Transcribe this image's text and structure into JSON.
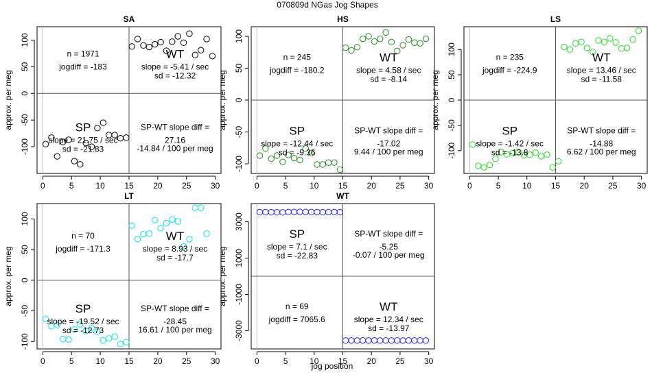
{
  "figure": {
    "title": "070809d   NGas Jog Shapes",
    "xlabel": "jog position",
    "ylabel": "approx. per meg"
  },
  "chart_data": [
    {
      "type": "scatter",
      "id": "SA",
      "title": "SA",
      "xlim": [
        -1,
        31
      ],
      "ylim": [
        -150,
        125
      ],
      "xticks": [
        0,
        5,
        10,
        15,
        20,
        25,
        30
      ],
      "yticks": [
        -100,
        -50,
        0,
        50,
        100
      ],
      "color": "#000000",
      "x": [
        0.5,
        1.5,
        2.5,
        3.5,
        4.5,
        5.5,
        6.5,
        7.5,
        8.5,
        9.5,
        10.5,
        11.5,
        12.5,
        13.5,
        14.5,
        15.5,
        16.5,
        17.5,
        18.5,
        19.5,
        20.5,
        21.5,
        22.5,
        23.5,
        24.5,
        25.5,
        26.5,
        27.5,
        28.5,
        29.5
      ],
      "y": [
        -95,
        -83,
        -118,
        -91,
        -87,
        -127,
        -133,
        -93,
        -100,
        -65,
        -55,
        -78,
        -78,
        -84,
        -83,
        88,
        102,
        90,
        87,
        92,
        96,
        80,
        97,
        107,
        95,
        112,
        72,
        81,
        102,
        70
      ],
      "quadrants": {
        "tl": {
          "n": "n = 1971",
          "jogdiff": "jogdiff = -183"
        },
        "tr": {
          "label": "WT",
          "slope": "slope = -5.41 / sec",
          "sd": "sd = -12.32"
        },
        "bl": {
          "label": "SP",
          "slope": "slope = 21.75 / sec",
          "sd": "sd = -21.83"
        },
        "br": {
          "title": "SP-WT slope diff =",
          "value": "27.16",
          "per": "-14.84 / 100 per meg"
        }
      }
    },
    {
      "type": "scatter",
      "id": "HS",
      "title": "HS",
      "xlim": [
        -1,
        31
      ],
      "ylim": [
        -115,
        115
      ],
      "xticks": [
        0,
        5,
        10,
        15,
        20,
        25,
        30
      ],
      "yticks": [
        -100,
        -50,
        0,
        50,
        100
      ],
      "color": "#228b22",
      "x": [
        0.5,
        1.5,
        2.5,
        3.5,
        4.5,
        5.5,
        6.5,
        7.5,
        8.5,
        9.5,
        10.5,
        11.5,
        12.5,
        13.5,
        14.5,
        15.5,
        16.5,
        17.5,
        18.5,
        19.5,
        20.5,
        21.5,
        22.5,
        23.5,
        24.5,
        25.5,
        26.5,
        27.5,
        28.5,
        29.5
      ],
      "y": [
        -87,
        -76,
        -92,
        -87,
        -97,
        -86,
        -91,
        -94,
        -76,
        -83,
        -101,
        -101,
        -98,
        -98,
        -109,
        82,
        78,
        83,
        96,
        100,
        92,
        96,
        106,
        91,
        77,
        86,
        95,
        90,
        89,
        96
      ],
      "quadrants": {
        "tl": {
          "n": "n = 245",
          "jogdiff": "jogdiff = -180.2"
        },
        "tr": {
          "label": "WT",
          "slope": "slope = 4.58 / sec",
          "sd": "sd = -8.14"
        },
        "bl": {
          "label": "SP",
          "slope": "slope = -12.44 / sec",
          "sd": "sd = -9.36"
        },
        "br": {
          "title": "SP-WT slope diff =",
          "value": "-17.02",
          "per": "9.44 / 100 per meg"
        }
      }
    },
    {
      "type": "scatter",
      "id": "LS",
      "title": "LS",
      "xlim": [
        -1,
        31
      ],
      "ylim": [
        -145,
        145
      ],
      "xticks": [
        0,
        5,
        10,
        15,
        20,
        25,
        30
      ],
      "yticks": [
        -100,
        -50,
        0,
        50,
        100
      ],
      "color": "#22dd22",
      "x": [
        0.5,
        1.5,
        2.5,
        3.5,
        4.5,
        5.5,
        6.5,
        7.5,
        8.5,
        9.5,
        10.5,
        11.5,
        12.5,
        13.5,
        14.5,
        15.5,
        16.5,
        17.5,
        18.5,
        19.5,
        20.5,
        21.5,
        22.5,
        23.5,
        24.5,
        25.5,
        26.5,
        27.5,
        28.5,
        29.5
      ],
      "y": [
        -88,
        -130,
        -133,
        -128,
        -116,
        -103,
        -107,
        -105,
        -103,
        -109,
        -108,
        -104,
        -111,
        -108,
        -133,
        -121,
        105,
        100,
        112,
        115,
        103,
        95,
        118,
        115,
        122,
        114,
        102,
        103,
        120,
        137
      ],
      "quadrants": {
        "tl": {
          "n": "n = 235",
          "jogdiff": "jogdiff = -224.9"
        },
        "tr": {
          "label": "WT",
          "slope": "slope = 13.46 / sec",
          "sd": "sd = -11.58"
        },
        "bl": {
          "label": "SP",
          "slope": "slope = -1.42 / sec",
          "sd": "sd = -13.8"
        },
        "br": {
          "title": "SP-WT slope diff =",
          "value": "-14.88",
          "per": "6.62 / 100 per meg"
        }
      }
    },
    {
      "type": "scatter",
      "id": "LT",
      "title": "LT",
      "xlim": [
        -1,
        31
      ],
      "ylim": [
        -112,
        125
      ],
      "xticks": [
        0,
        5,
        10,
        15,
        20,
        25,
        30
      ],
      "yticks": [
        -100,
        -50,
        0,
        50,
        100
      ],
      "color": "#00e5ee",
      "x": [
        0.5,
        1.5,
        2.5,
        3.5,
        4.5,
        5.5,
        6.5,
        7.5,
        8.5,
        9.5,
        10.5,
        11.5,
        12.5,
        13.5,
        14.5,
        15.5,
        16.5,
        17.5,
        18.5,
        19.5,
        20.5,
        21.5,
        22.5,
        23.5,
        24.5,
        25.5,
        26.5,
        27.5,
        28.5,
        29.5
      ],
      "y": [
        -63,
        -75,
        -73,
        -96,
        -97,
        -80,
        -72,
        -83,
        -78,
        -84,
        -98,
        -95,
        -92,
        -104,
        -101,
        89,
        67,
        75,
        76,
        98,
        85,
        93,
        99,
        96,
        55,
        67,
        118,
        118,
        76,
        null
      ],
      "quadrants": {
        "tl": {
          "n": "n = 70",
          "jogdiff": "jogdiff = -171.3"
        },
        "tr": {
          "label": "WT",
          "slope": "slope = 8.93 / sec",
          "sd": "sd = -17.7"
        },
        "bl": {
          "label": "SP",
          "slope": "slope = -19.52 / sec",
          "sd": "sd = -12.73"
        },
        "br": {
          "title": "SP-WT slope diff =",
          "value": "-28.45",
          "per": "16.61 / 100 per meg"
        }
      }
    },
    {
      "type": "scatter",
      "id": "WT",
      "title": "WT",
      "xlim": [
        -1,
        31
      ],
      "ylim": [
        -4000,
        4000
      ],
      "xticks": [
        0,
        5,
        10,
        15,
        20,
        25,
        30
      ],
      "yticks": [
        -3000,
        -1000,
        1000,
        3000
      ],
      "color": "#2222ee",
      "x": [
        0.5,
        1.5,
        2.5,
        3.5,
        4.5,
        5.5,
        6.5,
        7.5,
        8.5,
        9.5,
        10.5,
        11.5,
        12.5,
        13.5,
        14.5,
        15.5,
        16.5,
        17.5,
        18.5,
        19.5,
        20.5,
        21.5,
        22.5,
        23.5,
        24.5,
        25.5,
        26.5,
        27.5,
        28.5,
        29.5
      ],
      "y": [
        3530,
        3530,
        3525,
        3520,
        3515,
        3535,
        3540,
        3545,
        3540,
        3535,
        3530,
        3525,
        3530,
        3535,
        3530,
        -3540,
        -3535,
        -3540,
        -3535,
        -3540,
        -3535,
        -3540,
        -3535,
        -3540,
        -3535,
        -3540,
        -3535,
        -3540,
        -3535,
        -3540
      ],
      "quadrants": {
        "tl": {
          "label": "SP",
          "slope": "slope = 7.1 / sec",
          "sd": "sd = -22.83"
        },
        "tr": {
          "title": "SP-WT slope diff =",
          "value": "-5.25",
          "per": "-0.07 / 100 per meg"
        },
        "bl": {
          "n": "n = 69",
          "jogdiff": "jogdiff = 7065.6"
        },
        "br": {
          "label": "WT",
          "slope": "slope = 12.34 / sec",
          "sd": "sd = -13.97"
        }
      }
    }
  ]
}
